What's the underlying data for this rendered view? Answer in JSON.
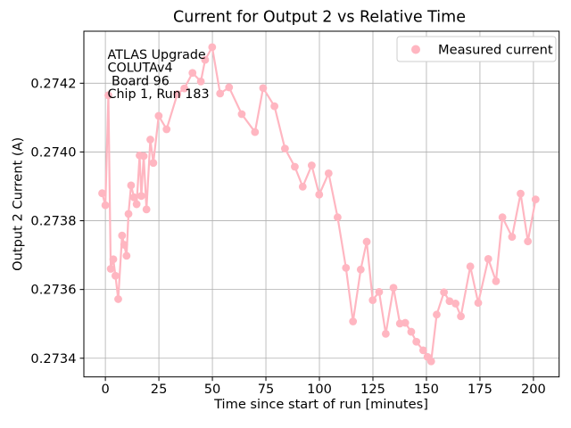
{
  "chart_data": {
    "type": "line",
    "title": "Current for Output 2 vs Relative Time",
    "xlabel": "Time since start of run [minutes]",
    "ylabel": "Output 2 Current (A)",
    "grid": true,
    "legend": {
      "position": "upper right",
      "label": "Measured current"
    },
    "annotation": {
      "lines": [
        "ATLAS Upgrade",
        "COLUTAv4",
        " Board 96",
        "Chip 1, Run 183"
      ]
    },
    "series_color": "#ffb6c1",
    "grid_color": "#b0b0b0",
    "xlim": [
      -10.05,
      212
    ],
    "ylim": [
      0.2733457,
      0.2743513
    ],
    "xticks": [
      0,
      25,
      50,
      75,
      100,
      125,
      150,
      175,
      200
    ],
    "yticks": [
      0.2734,
      0.2736,
      0.2738,
      0.274,
      0.2742
    ],
    "ytick_decimals": 4,
    "series": [
      {
        "name": "Measured current",
        "marker": "circle",
        "points": [
          [
            -1.5,
            0.27388
          ],
          [
            0.0,
            0.273845
          ],
          [
            1.4,
            0.274165
          ],
          [
            2.5,
            0.27366
          ],
          [
            3.7,
            0.273688
          ],
          [
            4.7,
            0.27364
          ],
          [
            6.0,
            0.273572
          ],
          [
            7.8,
            0.273757
          ],
          [
            8.8,
            0.27373
          ],
          [
            9.9,
            0.273698
          ],
          [
            10.8,
            0.27382
          ],
          [
            12.0,
            0.273903
          ],
          [
            13.4,
            0.273868
          ],
          [
            14.6,
            0.273848
          ],
          [
            16.0,
            0.27399
          ],
          [
            16.8,
            0.273872
          ],
          [
            17.9,
            0.273988
          ],
          [
            19.2,
            0.273833
          ],
          [
            21.0,
            0.274036
          ],
          [
            22.4,
            0.273968
          ],
          [
            24.9,
            0.274105
          ],
          [
            28.6,
            0.274066
          ],
          [
            33.6,
            0.274168
          ],
          [
            36.9,
            0.274185
          ],
          [
            40.7,
            0.27423
          ],
          [
            44.6,
            0.274205
          ],
          [
            46.6,
            0.274268
          ],
          [
            49.9,
            0.274305
          ],
          [
            53.6,
            0.27417
          ],
          [
            57.8,
            0.274188
          ],
          [
            63.7,
            0.27411
          ],
          [
            69.9,
            0.274058
          ],
          [
            73.7,
            0.274186
          ],
          [
            79.0,
            0.274133
          ],
          [
            83.9,
            0.27401
          ],
          [
            88.5,
            0.273957
          ],
          [
            92.2,
            0.273899
          ],
          [
            96.4,
            0.273961
          ],
          [
            99.9,
            0.273876
          ],
          [
            104.3,
            0.273938
          ],
          [
            108.5,
            0.27381
          ],
          [
            112.4,
            0.273663
          ],
          [
            115.7,
            0.273507
          ],
          [
            119.3,
            0.273658
          ],
          [
            122.1,
            0.273739
          ],
          [
            124.9,
            0.273569
          ],
          [
            127.9,
            0.273593
          ],
          [
            131.0,
            0.273471
          ],
          [
            134.6,
            0.273605
          ],
          [
            137.6,
            0.273501
          ],
          [
            140.1,
            0.273503
          ],
          [
            142.9,
            0.273477
          ],
          [
            145.3,
            0.273448
          ],
          [
            148.5,
            0.273423
          ],
          [
            150.5,
            0.273404
          ],
          [
            152.2,
            0.273391
          ],
          [
            154.8,
            0.273527
          ],
          [
            158.2,
            0.273592
          ],
          [
            160.8,
            0.273566
          ],
          [
            163.6,
            0.273559
          ],
          [
            166.1,
            0.273522
          ],
          [
            170.5,
            0.273667
          ],
          [
            174.2,
            0.273561
          ],
          [
            178.9,
            0.273689
          ],
          [
            182.5,
            0.273624
          ],
          [
            185.5,
            0.27381
          ],
          [
            190.0,
            0.273753
          ],
          [
            194.0,
            0.273879
          ],
          [
            197.4,
            0.27374
          ],
          [
            201.0,
            0.273862
          ]
        ]
      }
    ]
  }
}
